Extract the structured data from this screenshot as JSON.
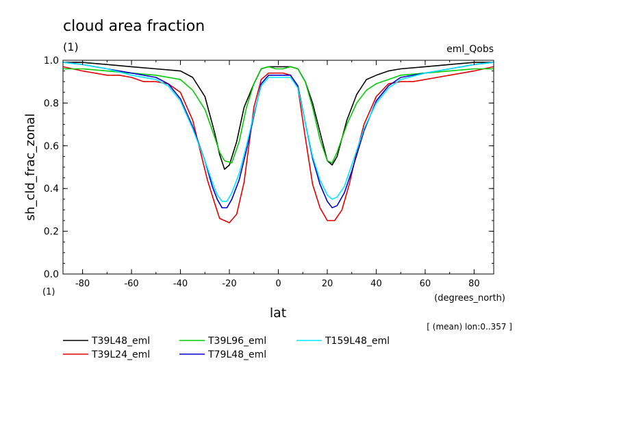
{
  "chart_data": {
    "type": "line",
    "title": "cloud area fraction",
    "title_units": "(1)",
    "experiment_label": "eml_Qobs",
    "ylabel": "sh_cld_frac_zonal",
    "y_units": "(1)",
    "xlabel": "lat",
    "x_units": "(degrees_north)",
    "note": "[ (mean) lon:0..357 ]",
    "xlim": [
      -88,
      88
    ],
    "ylim": [
      0,
      1
    ],
    "x_ticks": [
      -80,
      -60,
      -40,
      -20,
      0,
      20,
      40,
      60,
      80
    ],
    "y_ticks": [
      "0.0",
      "0.2",
      "0.4",
      "0.6",
      "0.8",
      "1.0"
    ],
    "grid": false,
    "legend_position": "bottom",
    "series": [
      {
        "name": "T39L48_eml",
        "color": "#000000",
        "x": [
          -88,
          -80,
          -70,
          -60,
          -50,
          -40,
          -35,
          -30,
          -26,
          -24,
          -22,
          -20,
          -17,
          -14,
          -10,
          -7,
          -4,
          -1,
          2,
          5,
          8,
          11,
          14,
          18,
          20,
          22,
          24,
          28,
          32,
          36,
          40,
          45,
          50,
          60,
          70,
          80,
          88
        ],
        "y": [
          0.99,
          0.99,
          0.98,
          0.97,
          0.96,
          0.95,
          0.92,
          0.83,
          0.66,
          0.56,
          0.49,
          0.51,
          0.62,
          0.78,
          0.89,
          0.96,
          0.97,
          0.97,
          0.97,
          0.97,
          0.96,
          0.9,
          0.8,
          0.62,
          0.53,
          0.51,
          0.55,
          0.72,
          0.84,
          0.91,
          0.93,
          0.95,
          0.96,
          0.97,
          0.98,
          0.99,
          0.99
        ]
      },
      {
        "name": "T39L24_eml",
        "color": "#e00000",
        "x": [
          -88,
          -80,
          -70,
          -65,
          -60,
          -55,
          -50,
          -45,
          -40,
          -35,
          -32,
          -29,
          -26,
          -24,
          -22,
          -20,
          -17,
          -14,
          -10,
          -7,
          -4,
          -1,
          2,
          5,
          8,
          11,
          14,
          17,
          20,
          23,
          26,
          29,
          32,
          35,
          40,
          45,
          50,
          55,
          60,
          70,
          80,
          88
        ],
        "y": [
          0.97,
          0.95,
          0.93,
          0.93,
          0.92,
          0.9,
          0.9,
          0.89,
          0.85,
          0.72,
          0.58,
          0.44,
          0.33,
          0.26,
          0.25,
          0.24,
          0.28,
          0.43,
          0.78,
          0.91,
          0.94,
          0.94,
          0.94,
          0.93,
          0.87,
          0.64,
          0.42,
          0.31,
          0.25,
          0.25,
          0.3,
          0.42,
          0.57,
          0.7,
          0.83,
          0.89,
          0.9,
          0.9,
          0.91,
          0.93,
          0.95,
          0.97
        ]
      },
      {
        "name": "T39L96_eml",
        "color": "#00cc00",
        "x": [
          -88,
          -80,
          -70,
          -60,
          -50,
          -40,
          -35,
          -30,
          -26,
          -24,
          -22,
          -19,
          -16,
          -13,
          -10,
          -7,
          -4,
          -1,
          2,
          5,
          8,
          11,
          14,
          17,
          20,
          22,
          24,
          28,
          32,
          36,
          40,
          45,
          50,
          60,
          70,
          80,
          88
        ],
        "y": [
          0.96,
          0.96,
          0.95,
          0.94,
          0.93,
          0.91,
          0.86,
          0.77,
          0.64,
          0.57,
          0.53,
          0.52,
          0.62,
          0.78,
          0.89,
          0.96,
          0.97,
          0.96,
          0.96,
          0.97,
          0.96,
          0.9,
          0.78,
          0.63,
          0.53,
          0.52,
          0.57,
          0.7,
          0.8,
          0.86,
          0.89,
          0.91,
          0.93,
          0.94,
          0.95,
          0.96,
          0.96
        ]
      },
      {
        "name": "T79L48_eml",
        "color": "#0000cc",
        "x": [
          -88,
          -80,
          -70,
          -60,
          -50,
          -45,
          -40,
          -35,
          -30,
          -27,
          -25,
          -23,
          -21,
          -19,
          -16,
          -13,
          -10,
          -7,
          -4,
          -1,
          2,
          5,
          8,
          11,
          14,
          17,
          20,
          22,
          24,
          27,
          30,
          35,
          40,
          45,
          50,
          60,
          70,
          80,
          88
        ],
        "y": [
          0.99,
          0.98,
          0.96,
          0.94,
          0.92,
          0.89,
          0.82,
          0.69,
          0.53,
          0.41,
          0.35,
          0.31,
          0.31,
          0.35,
          0.44,
          0.58,
          0.74,
          0.89,
          0.93,
          0.93,
          0.93,
          0.93,
          0.88,
          0.71,
          0.54,
          0.42,
          0.34,
          0.31,
          0.32,
          0.38,
          0.48,
          0.67,
          0.81,
          0.88,
          0.92,
          0.94,
          0.96,
          0.98,
          0.99
        ]
      },
      {
        "name": "T159L48_eml",
        "color": "#00e5ff",
        "x": [
          -88,
          -80,
          -70,
          -60,
          -50,
          -45,
          -40,
          -35,
          -30,
          -27,
          -25,
          -23,
          -21,
          -19,
          -16,
          -13,
          -10,
          -7,
          -4,
          -1,
          2,
          5,
          8,
          11,
          14,
          17,
          20,
          22,
          24,
          27,
          30,
          35,
          40,
          45,
          50,
          60,
          70,
          80,
          88
        ],
        "y": [
          0.99,
          0.98,
          0.96,
          0.93,
          0.91,
          0.88,
          0.81,
          0.68,
          0.53,
          0.43,
          0.37,
          0.34,
          0.34,
          0.38,
          0.47,
          0.6,
          0.75,
          0.88,
          0.92,
          0.92,
          0.92,
          0.92,
          0.87,
          0.71,
          0.55,
          0.44,
          0.37,
          0.35,
          0.36,
          0.41,
          0.51,
          0.68,
          0.8,
          0.87,
          0.91,
          0.94,
          0.96,
          0.98,
          0.99
        ]
      }
    ]
  }
}
